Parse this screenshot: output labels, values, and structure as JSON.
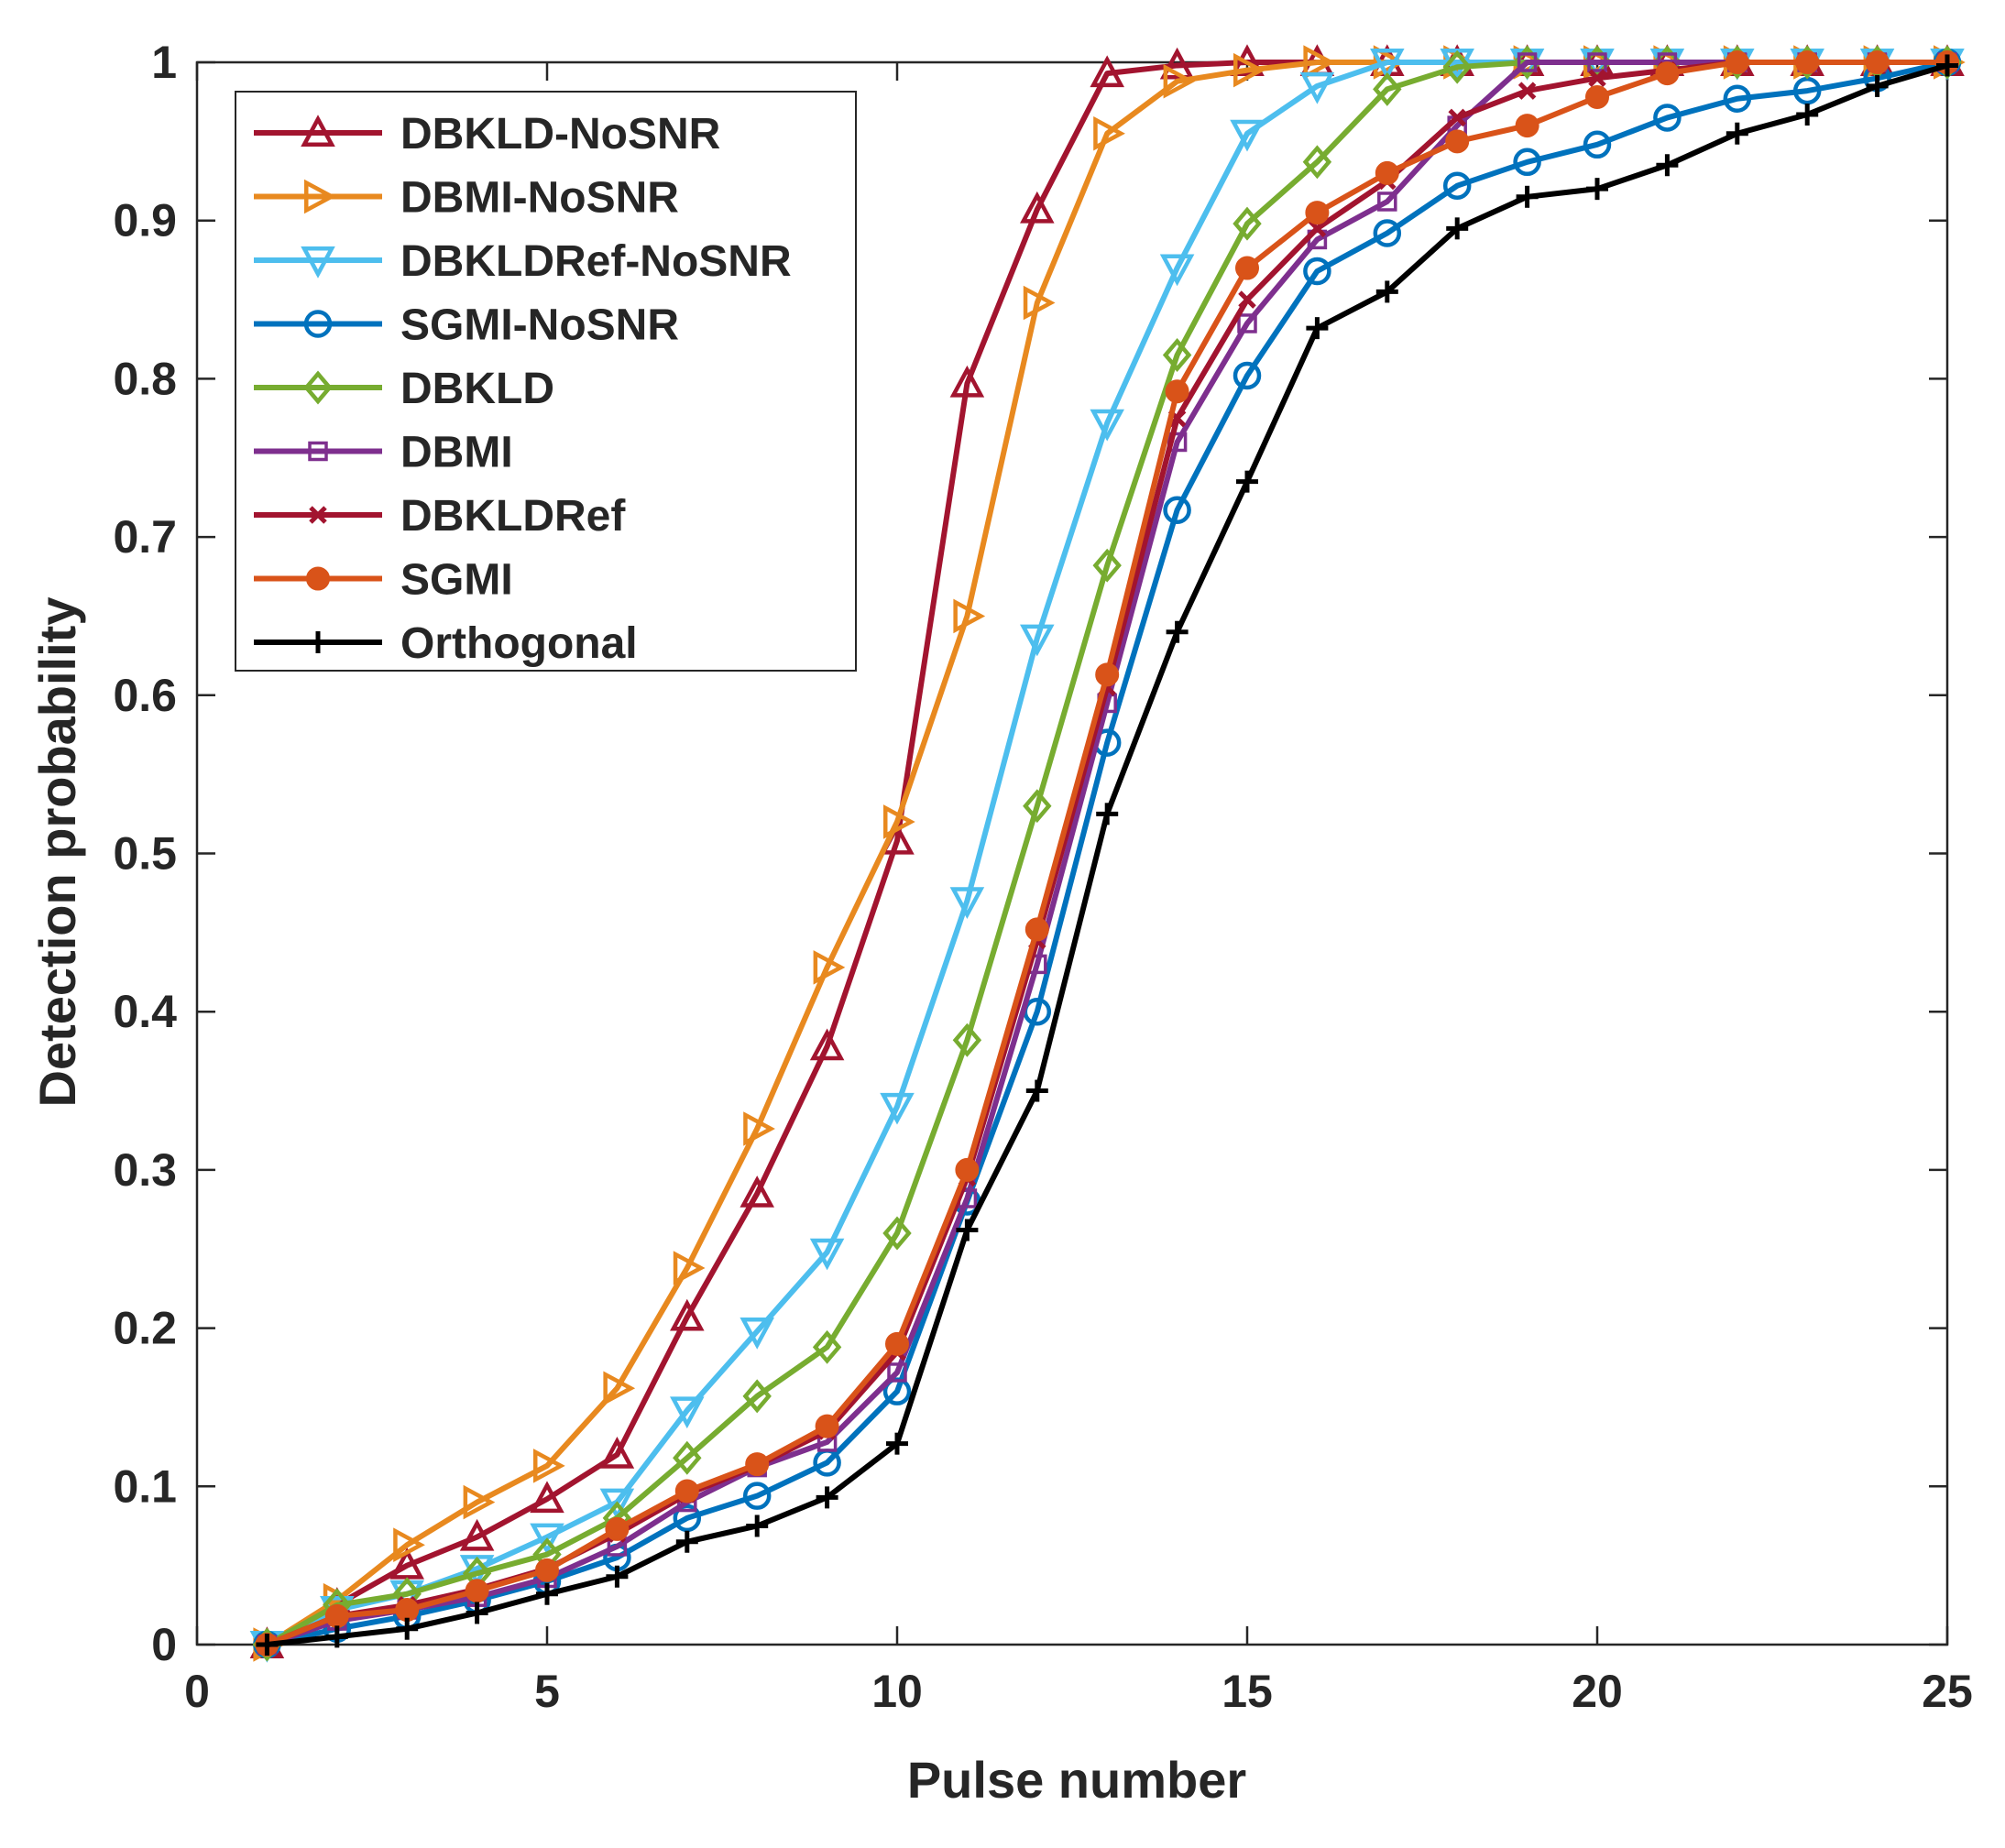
{
  "chart_data": {
    "type": "line",
    "title": "",
    "xlabel": "Pulse number",
    "ylabel": "Detection probability",
    "xlim": [
      0,
      25
    ],
    "ylim": [
      0,
      1
    ],
    "xticks": [
      0,
      5,
      10,
      15,
      20,
      25
    ],
    "xtick_labels": [
      "0",
      "5",
      "10",
      "15",
      "20",
      "25"
    ],
    "yticks": [
      0,
      0.1,
      0.2,
      0.3,
      0.4,
      0.5,
      0.6,
      0.7,
      0.8,
      0.9,
      1
    ],
    "ytick_labels": [
      "0",
      "0.1",
      "0.2",
      "0.3",
      "0.4",
      "0.5",
      "0.6",
      "0.7",
      "0.8",
      "0.9",
      "1"
    ],
    "grid": false,
    "legend_position": "top-left",
    "x": [
      1,
      2,
      3,
      4,
      5,
      6,
      7,
      8,
      9,
      10,
      11,
      12,
      13,
      14,
      15,
      16,
      17,
      18,
      19,
      20,
      21,
      22,
      23,
      24,
      25
    ],
    "series": [
      {
        "name": "DBKLD-NoSNR",
        "color": "#a2142f",
        "marker": "triangle-up",
        "values": [
          0,
          0.025,
          0.05,
          0.068,
          0.092,
          0.12,
          0.207,
          0.285,
          0.378,
          0.508,
          0.797,
          0.907,
          0.993,
          0.998,
          1,
          1,
          1,
          1,
          1,
          1,
          1,
          1,
          1,
          1,
          1
        ]
      },
      {
        "name": "DBMI-NoSNR",
        "color": "#edb120",
        "stroke": "#e8891f",
        "marker": "triangle-right",
        "values": [
          0,
          0.028,
          0.063,
          0.09,
          0.113,
          0.162,
          0.238,
          0.326,
          0.428,
          0.52,
          0.65,
          0.848,
          0.955,
          0.988,
          0.995,
          1,
          1,
          1,
          1,
          1,
          1,
          1,
          1,
          1,
          1
        ]
      },
      {
        "name": "DBKLDRef-NoSNR",
        "color": "#4dbeee",
        "marker": "triangle-down",
        "values": [
          0,
          0.022,
          0.032,
          0.048,
          0.068,
          0.09,
          0.148,
          0.198,
          0.248,
          0.34,
          0.47,
          0.636,
          0.772,
          0.87,
          0.955,
          0.985,
          1,
          1,
          1,
          1,
          1,
          1,
          1,
          1,
          1
        ]
      },
      {
        "name": "SGMI-NoSNR",
        "color": "#0072bd",
        "marker": "circle",
        "values": [
          0,
          0.01,
          0.018,
          0.028,
          0.04,
          0.055,
          0.08,
          0.094,
          0.115,
          0.16,
          0.28,
          0.4,
          0.57,
          0.717,
          0.802,
          0.868,
          0.892,
          0.922,
          0.937,
          0.948,
          0.965,
          0.977,
          0.982,
          0.99,
          1
        ]
      },
      {
        "name": "DBKLD",
        "color": "#77ac30",
        "marker": "diamond",
        "values": [
          0,
          0.025,
          0.032,
          0.045,
          0.057,
          0.08,
          0.118,
          0.157,
          0.188,
          0.26,
          0.382,
          0.53,
          0.682,
          0.815,
          0.898,
          0.937,
          0.983,
          0.997,
          1,
          1,
          1,
          1,
          1,
          1,
          1
        ]
      },
      {
        "name": "DBMI",
        "color": "#7e2f8e",
        "marker": "square",
        "values": [
          0,
          0.015,
          0.022,
          0.03,
          0.042,
          0.062,
          0.09,
          0.112,
          0.128,
          0.172,
          0.282,
          0.43,
          0.595,
          0.76,
          0.835,
          0.888,
          0.912,
          0.96,
          1,
          1,
          1,
          1,
          1,
          1,
          1
        ]
      },
      {
        "name": "DBKLDRef",
        "color": "#a2142f",
        "marker": "x",
        "values": [
          0,
          0.018,
          0.025,
          0.035,
          0.048,
          0.07,
          0.095,
          0.113,
          0.135,
          0.185,
          0.295,
          0.445,
          0.605,
          0.775,
          0.85,
          0.895,
          0.925,
          0.965,
          0.982,
          0.99,
          0.995,
          1,
          1,
          1,
          1
        ]
      },
      {
        "name": "SGMI",
        "color": "#d95319",
        "marker": "filled-circle",
        "values": [
          0,
          0.018,
          0.022,
          0.034,
          0.047,
          0.073,
          0.097,
          0.114,
          0.138,
          0.19,
          0.3,
          0.452,
          0.613,
          0.792,
          0.87,
          0.905,
          0.93,
          0.95,
          0.96,
          0.978,
          0.993,
          1,
          1,
          1,
          1
        ]
      },
      {
        "name": "Orthogonal",
        "color": "#000000",
        "marker": "plus",
        "values": [
          0,
          0.005,
          0.01,
          0.02,
          0.032,
          0.043,
          0.065,
          0.075,
          0.093,
          0.127,
          0.262,
          0.35,
          0.525,
          0.64,
          0.735,
          0.832,
          0.855,
          0.895,
          0.915,
          0.92,
          0.935,
          0.955,
          0.967,
          0.985,
          0.998
        ]
      }
    ]
  }
}
